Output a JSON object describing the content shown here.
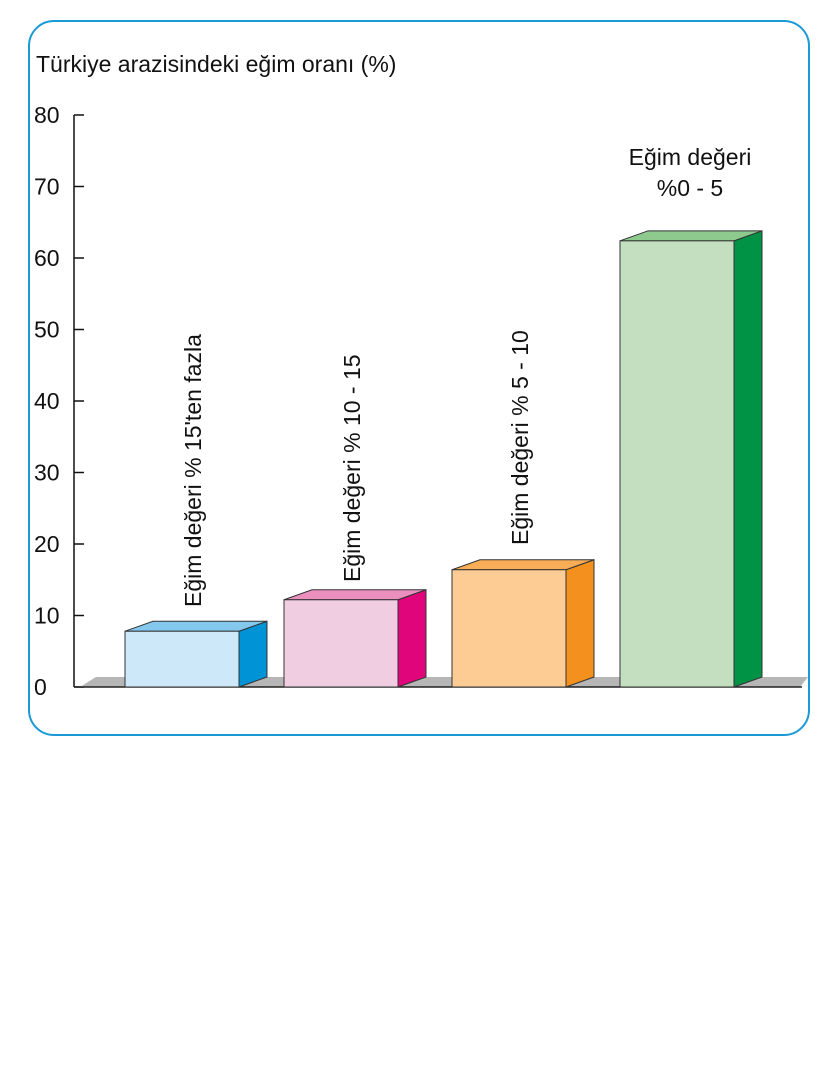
{
  "chart_data": {
    "type": "bar",
    "title": "Türkiye arazisindeki eğim oranı (%)",
    "xlabel": "",
    "ylabel": "",
    "ylim": [
      0,
      80
    ],
    "yticks": [
      "0",
      "10",
      "20",
      "30",
      "40",
      "50",
      "60",
      "70",
      "80"
    ],
    "grid": false,
    "legend": "none",
    "three_d": true,
    "categories": [
      "Eğim değeri % 15'ten fazla",
      "Eğim değeri % 10 - 15",
      "Eğim değeri % 5 - 10",
      "Eğim değeri %0 - 5"
    ],
    "values": [
      7.8,
      12.2,
      16.4,
      62.4
    ],
    "colors": [
      {
        "front": "#cde8f8",
        "side": "#0093d6",
        "top": "#85c8ee"
      },
      {
        "front": "#f0cde0",
        "side": "#e0057a",
        "top": "#ea8fbe"
      },
      {
        "front": "#fdcc94",
        "side": "#f4901e",
        "top": "#f8ad56"
      },
      {
        "front": "#c3dfc0",
        "side": "#009245",
        "top": "#8ec98e"
      }
    ],
    "frame_color": "#1b9ad6"
  }
}
